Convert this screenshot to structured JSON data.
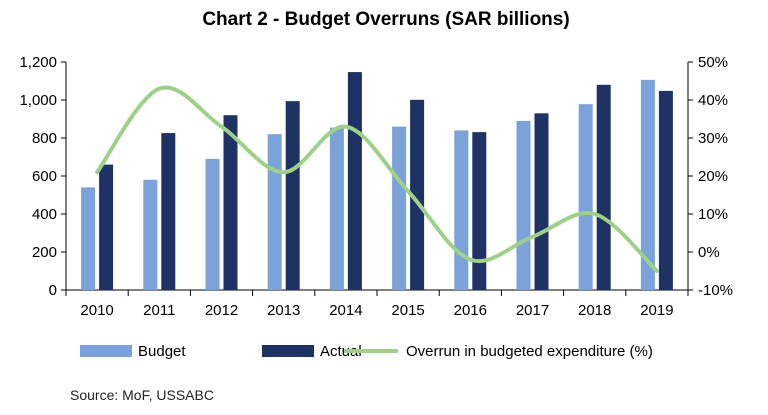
{
  "chart_data": {
    "type": "bar",
    "title": "Chart 2 - Budget Overruns (SAR billions)",
    "categories": [
      "2010",
      "2011",
      "2012",
      "2013",
      "2014",
      "2015",
      "2016",
      "2017",
      "2018",
      "2019"
    ],
    "series": [
      {
        "name": "Budget",
        "kind": "bar",
        "axis": "left",
        "color": "#7ba3d9",
        "values": [
          540,
          580,
          690,
          820,
          855,
          860,
          840,
          890,
          978,
          1106
        ]
      },
      {
        "name": "Actual",
        "kind": "bar",
        "axis": "left",
        "color": "#1f3264",
        "values": [
          660,
          826,
          920,
          994,
          1147,
          1001,
          831,
          930,
          1080,
          1048
        ]
      },
      {
        "name": "Overrun in budgeted expenditure (%)",
        "kind": "line",
        "axis": "right",
        "color": "#9ed08a",
        "values": [
          21,
          43,
          33,
          21,
          33,
          16,
          -2,
          4,
          10,
          -5
        ]
      }
    ],
    "y_left": {
      "ylim": [
        0,
        1200
      ],
      "ticks": [
        0,
        200,
        400,
        600,
        800,
        1000,
        1200
      ],
      "tick_labels": [
        "0",
        "200",
        "400",
        "600",
        "800",
        "1,000",
        "1,200"
      ]
    },
    "y_right": {
      "ylim": [
        -10,
        50
      ],
      "ticks": [
        -10,
        0,
        10,
        20,
        30,
        40,
        50
      ],
      "tick_labels": [
        "-10%",
        "0%",
        "10%",
        "20%",
        "30%",
        "40%",
        "50%"
      ]
    },
    "grid": false,
    "legend_position": "bottom",
    "source": "Source: MoF, USSABC"
  }
}
